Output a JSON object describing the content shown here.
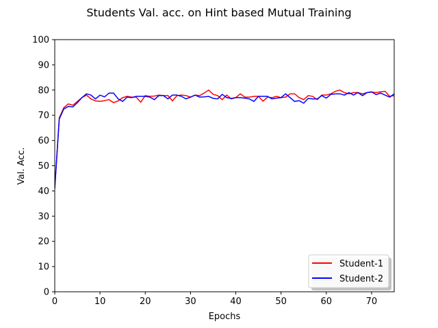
{
  "chart_data": {
    "type": "line",
    "title": "Students Val. acc. on Hint based Mutual Training",
    "xlabel": "Epochs",
    "ylabel": "Val. Acc.",
    "xlim": [
      0,
      75
    ],
    "ylim": [
      0,
      100
    ],
    "xticks": [
      0,
      10,
      20,
      30,
      40,
      50,
      60,
      70
    ],
    "yticks": [
      0,
      10,
      20,
      30,
      40,
      50,
      60,
      70,
      80,
      90,
      100
    ],
    "grid": false,
    "legend_position": "bottom-right",
    "x": [
      0,
      1,
      2,
      3,
      4,
      5,
      6,
      7,
      8,
      9,
      10,
      11,
      12,
      13,
      14,
      15,
      16,
      17,
      18,
      19,
      20,
      21,
      22,
      23,
      24,
      25,
      26,
      27,
      28,
      29,
      30,
      31,
      32,
      33,
      34,
      35,
      36,
      37,
      38,
      39,
      40,
      41,
      42,
      43,
      44,
      45,
      46,
      47,
      48,
      49,
      50,
      51,
      52,
      53,
      54,
      55,
      56,
      57,
      58,
      59,
      60,
      61,
      62,
      63,
      64,
      65,
      66,
      67,
      68,
      69,
      70,
      71,
      72,
      73,
      74,
      75
    ],
    "series": [
      {
        "name": "Student-1",
        "color": "#ff0000",
        "values": [
          41,
          69,
          73,
          74.5,
          74,
          75.5,
          77,
          78,
          76.5,
          75.7,
          75.5,
          75.8,
          76.2,
          75,
          75.7,
          77,
          77.5,
          77.2,
          77.2,
          75.2,
          77.8,
          77.5,
          77.6,
          78,
          77.8,
          77.8,
          75.7,
          77.8,
          78,
          77.8,
          77.2,
          78,
          77.8,
          78.8,
          80,
          78.3,
          77.8,
          76.2,
          78,
          76.5,
          77,
          78.5,
          77.2,
          77.2,
          77.5,
          77.5,
          75.6,
          77.2,
          77,
          77.5,
          77,
          77.2,
          78.5,
          78.5,
          77,
          76.2,
          77.8,
          77.5,
          76.2,
          78,
          78,
          78.5,
          79.5,
          80,
          79,
          78.5,
          79,
          79,
          78.5,
          79,
          79.2,
          79,
          79.3,
          79.5,
          77.5,
          77.8
        ]
      },
      {
        "name": "Student-2",
        "color": "#0000ff",
        "values": [
          41,
          68.5,
          72.5,
          73.5,
          73.3,
          75,
          77,
          78.5,
          78,
          76.5,
          78,
          77.3,
          78.8,
          78.8,
          76.5,
          75.5,
          77.2,
          77,
          77.5,
          77.5,
          77.5,
          77.2,
          76.2,
          77.8,
          77.8,
          76.5,
          78,
          78,
          77.5,
          76.5,
          77.2,
          78,
          77.2,
          77.3,
          77.5,
          76.7,
          76.5,
          78.3,
          77,
          76.7,
          77,
          77,
          76.8,
          76.5,
          75.5,
          77.5,
          77.5,
          77.5,
          76.5,
          76.8,
          77,
          78.5,
          77,
          75.5,
          75.8,
          74.8,
          76.7,
          76.5,
          76.5,
          77.8,
          76.8,
          78.3,
          78.5,
          78.5,
          78,
          79,
          78,
          79,
          77.8,
          79,
          79.3,
          78.2,
          78.8,
          78,
          77.2,
          78.5
        ]
      }
    ]
  }
}
